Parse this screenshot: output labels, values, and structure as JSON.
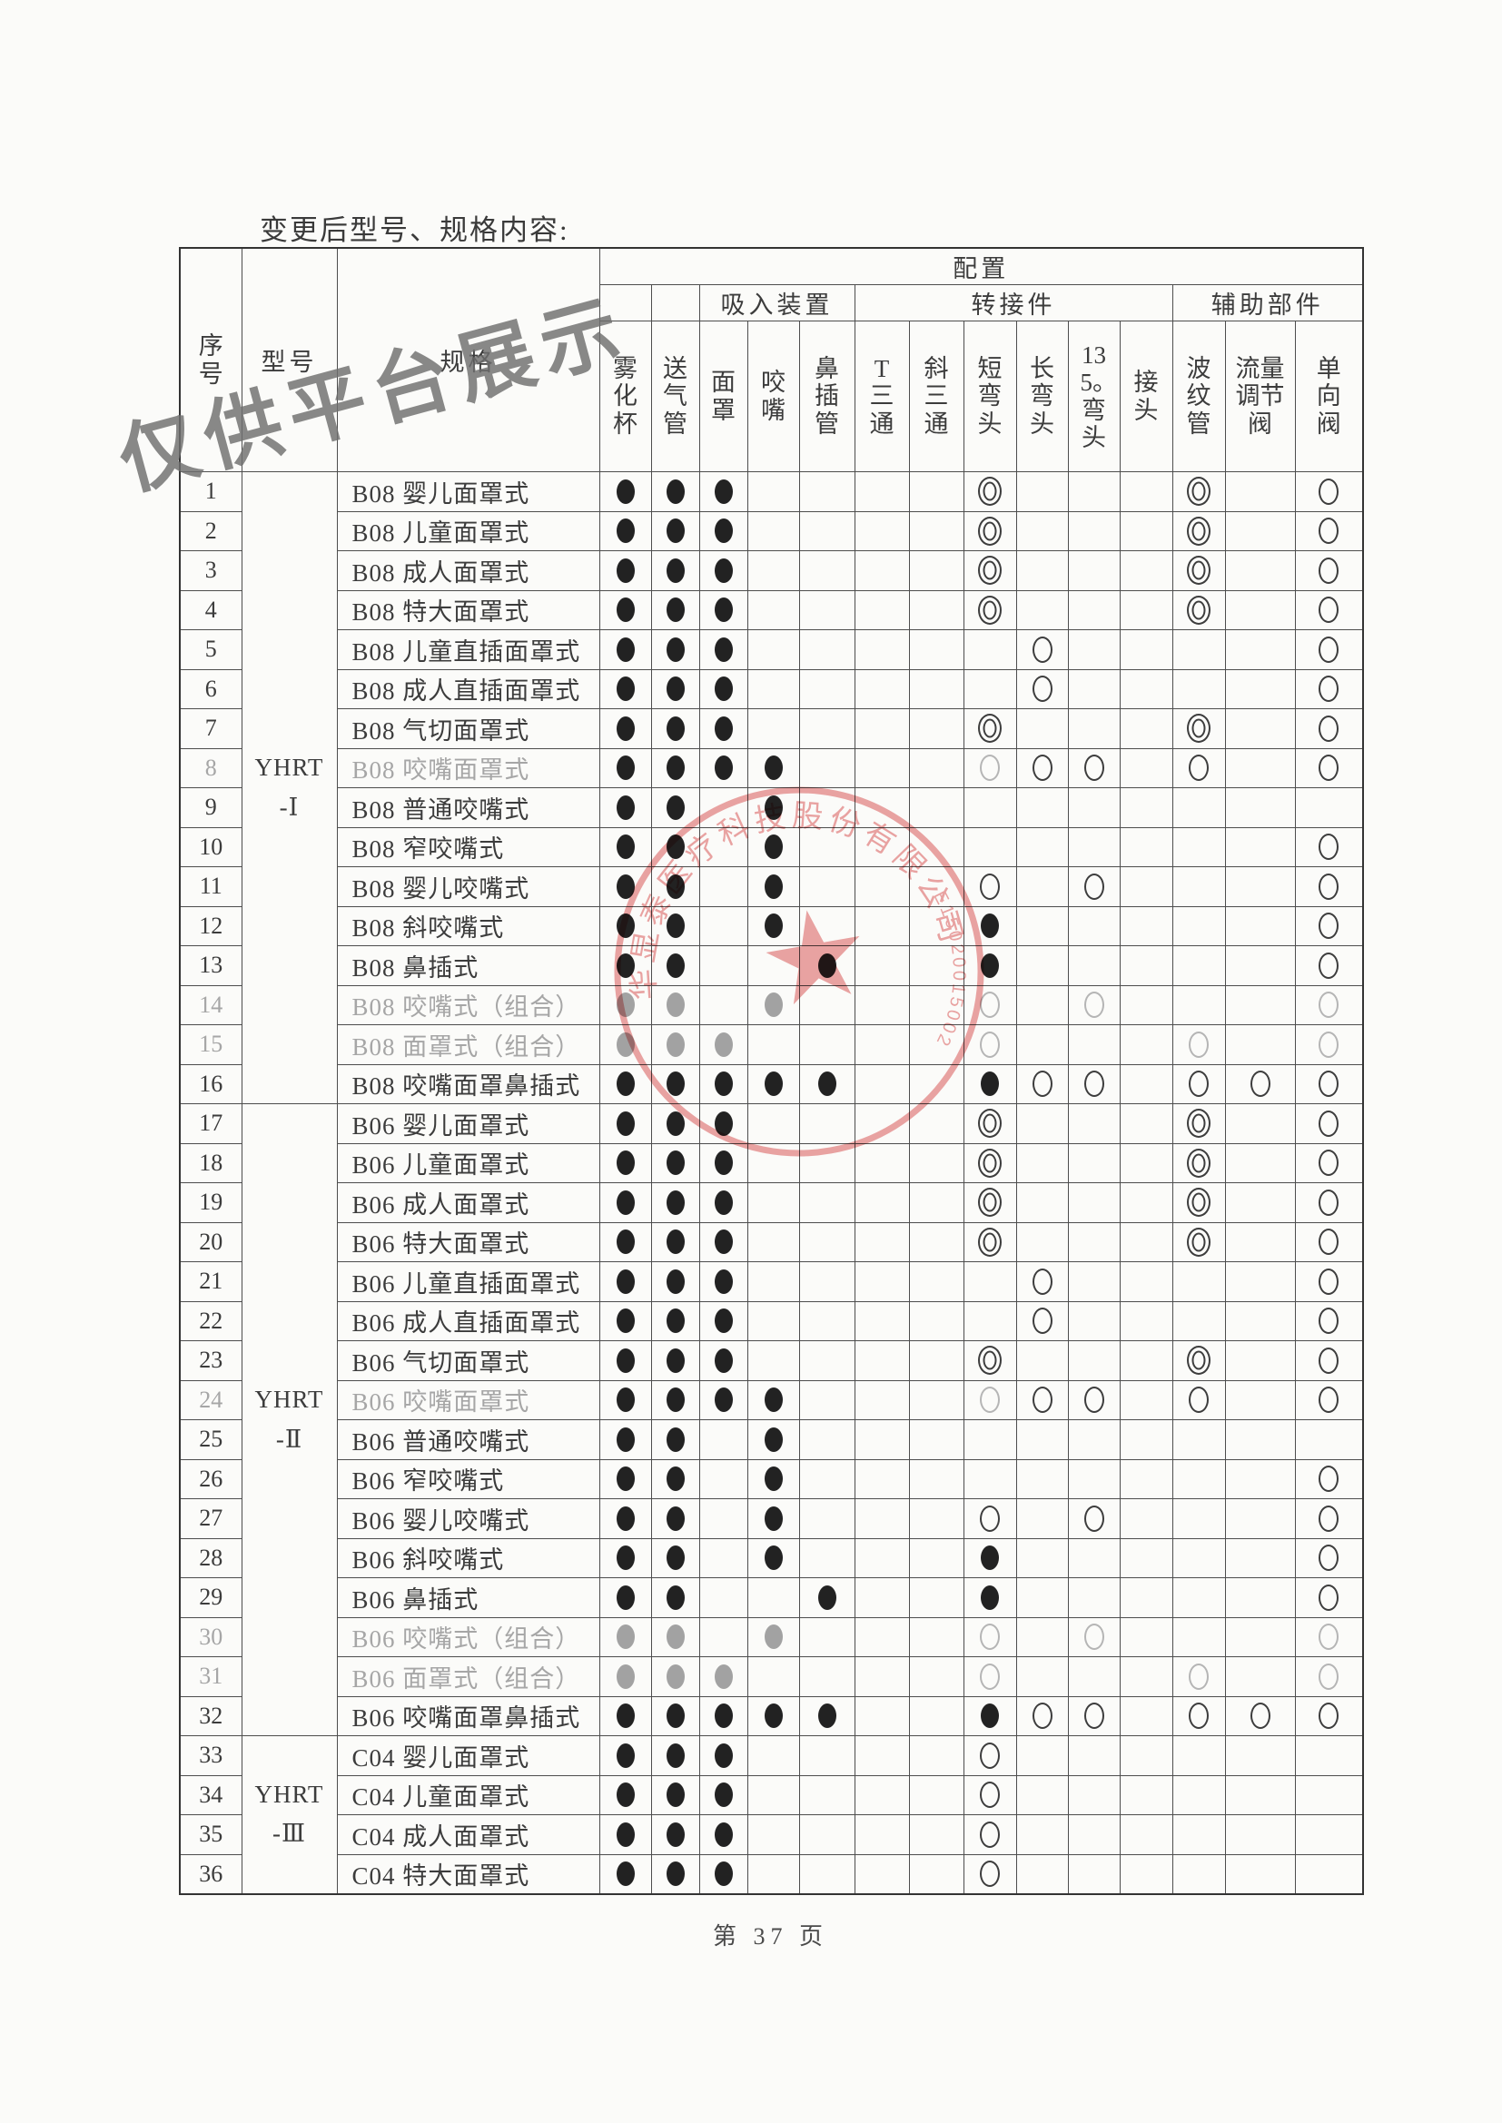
{
  "page": {
    "title": "变更后型号、规格内容:",
    "watermark": "仅供平台展示",
    "footer": "第 37 页"
  },
  "stamp": {
    "arc_text": "华显泰医疗科技股份有限公司",
    "code_text": "E15020015002",
    "color": "#dd5a5a"
  },
  "table": {
    "headers": {
      "index": "序号",
      "model": "型号",
      "spec": "规格",
      "config": "配置",
      "groups": [
        {
          "label": "",
          "span": 1
        },
        {
          "label": "",
          "span": 1
        },
        {
          "label": "吸入装置",
          "span": 3
        },
        {
          "label": "转接件",
          "span": 6
        },
        {
          "label": "辅助部件",
          "span": 3
        }
      ],
      "columns": [
        "雾化杯",
        "送气管",
        "面罩",
        "咬嘴",
        "鼻插管",
        "T三通",
        "斜三通",
        "短弯头",
        "长弯头",
        "135。弯头",
        "接头",
        "波纹管",
        "流量调节阀",
        "单向阀"
      ]
    },
    "model_groups": [
      {
        "model": "YHRT\n-Ⅰ",
        "rows": 16
      },
      {
        "model": "YHRT\n-Ⅱ",
        "rows": 16
      },
      {
        "model": "YHRT\n-Ⅲ",
        "rows": 4
      }
    ],
    "marks_legend": {
      "f": "filled-dot",
      "F": "filled-dot-faded",
      "o": "open-circle",
      "O": "open-circle-faded",
      "d": "double-circle",
      "D": "double-circle-faded",
      ".": "empty"
    },
    "rows": [
      {
        "no": "1",
        "spec": "B08 婴儿面罩式",
        "fade": false,
        "marks": "fff....d...d.o"
      },
      {
        "no": "2",
        "spec": "B08 儿童面罩式",
        "fade": false,
        "marks": "fff....d...d.o"
      },
      {
        "no": "3",
        "spec": "B08 成人面罩式",
        "fade": false,
        "marks": "fff....d...d.o"
      },
      {
        "no": "4",
        "spec": "B08 特大面罩式",
        "fade": false,
        "marks": "fff....d...d.o"
      },
      {
        "no": "5",
        "spec": "B08 儿童直插面罩式",
        "fade": false,
        "marks": "fff.....o....o"
      },
      {
        "no": "6",
        "spec": "B08 成人直插面罩式",
        "fade": false,
        "marks": "fff.....o....o"
      },
      {
        "no": "7",
        "spec": "B08 气切面罩式",
        "fade": false,
        "marks": "fff....d...d.o"
      },
      {
        "no": "8",
        "spec": "B08 咬嘴面罩式",
        "fade": true,
        "marks": "ffff...Ooo.o.o"
      },
      {
        "no": "9",
        "spec": "B08 普通咬嘴式",
        "fade": false,
        "marks": "ff.f.........."
      },
      {
        "no": "10",
        "spec": "B08 窄咬嘴式",
        "fade": false,
        "marks": "ff.f.........o"
      },
      {
        "no": "11",
        "spec": "B08 婴儿咬嘴式",
        "fade": false,
        "marks": "ff.f...o.o...o"
      },
      {
        "no": "12",
        "spec": "B08 斜咬嘴式",
        "fade": false,
        "marks": "ff.f...f.....o"
      },
      {
        "no": "13",
        "spec": "B08 鼻插式",
        "fade": false,
        "marks": "ff..f..f.....o"
      },
      {
        "no": "14",
        "spec": "B08 咬嘴式（组合）",
        "fade": true,
        "marks": "FF.F...O.O...O"
      },
      {
        "no": "15",
        "spec": "B08 面罩式（组合）",
        "fade": true,
        "marks": "FFF....O...O.O"
      },
      {
        "no": "16",
        "spec": "B08 咬嘴面罩鼻插式",
        "fade": false,
        "marks": "fffff..foo.ooo"
      },
      {
        "no": "17",
        "spec": "B06 婴儿面罩式",
        "fade": false,
        "marks": "fff....d...d.o"
      },
      {
        "no": "18",
        "spec": "B06 儿童面罩式",
        "fade": false,
        "marks": "fff....d...d.o"
      },
      {
        "no": "19",
        "spec": "B06 成人面罩式",
        "fade": false,
        "marks": "fff....d...d.o"
      },
      {
        "no": "20",
        "spec": "B06 特大面罩式",
        "fade": false,
        "marks": "fff....d...d.o"
      },
      {
        "no": "21",
        "spec": "B06 儿童直插面罩式",
        "fade": false,
        "marks": "fff.....o....o"
      },
      {
        "no": "22",
        "spec": "B06 成人直插面罩式",
        "fade": false,
        "marks": "fff.....o....o"
      },
      {
        "no": "23",
        "spec": "B06 气切面罩式",
        "fade": false,
        "marks": "fff....d...d.o"
      },
      {
        "no": "24",
        "spec": "B06 咬嘴面罩式",
        "fade": true,
        "marks": "ffff...Ooo.o.o"
      },
      {
        "no": "25",
        "spec": "B06 普通咬嘴式",
        "fade": false,
        "marks": "ff.f.........."
      },
      {
        "no": "26",
        "spec": "B06 窄咬嘴式",
        "fade": false,
        "marks": "ff.f.........o"
      },
      {
        "no": "27",
        "spec": "B06 婴儿咬嘴式",
        "fade": false,
        "marks": "ff.f...o.o...o"
      },
      {
        "no": "28",
        "spec": "B06 斜咬嘴式",
        "fade": false,
        "marks": "ff.f...f.....o"
      },
      {
        "no": "29",
        "spec": "B06 鼻插式",
        "fade": false,
        "marks": "ff..f..f.....o"
      },
      {
        "no": "30",
        "spec": "B06 咬嘴式（组合）",
        "fade": true,
        "marks": "FF.F...O.O...O"
      },
      {
        "no": "31",
        "spec": "B06 面罩式（组合）",
        "fade": true,
        "marks": "FFF....O...O.O"
      },
      {
        "no": "32",
        "spec": "B06 咬嘴面罩鼻插式",
        "fade": false,
        "marks": "fffff..foo.ooo"
      },
      {
        "no": "33",
        "spec": "C04 婴儿面罩式",
        "fade": false,
        "marks": "fff....o......"
      },
      {
        "no": "34",
        "spec": "C04 儿童面罩式",
        "fade": false,
        "marks": "fff....o......"
      },
      {
        "no": "35",
        "spec": "C04 成人面罩式",
        "fade": false,
        "marks": "fff....o......"
      },
      {
        "no": "36",
        "spec": "C04 特大面罩式",
        "fade": false,
        "marks": "fff....o......"
      }
    ]
  }
}
